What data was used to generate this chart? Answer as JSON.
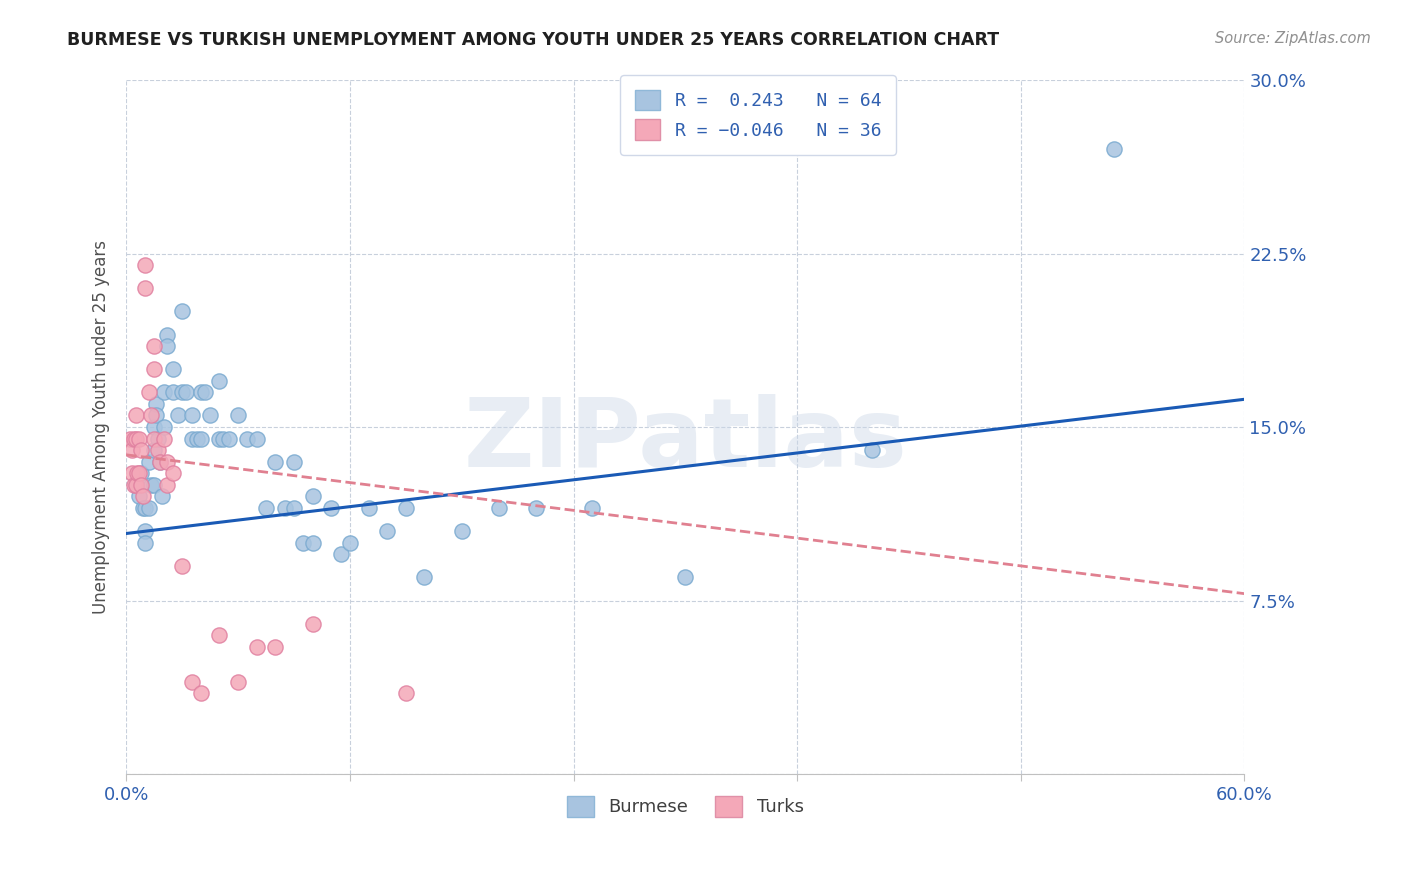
{
  "title": "BURMESE VS TURKISH UNEMPLOYMENT AMONG YOUTH UNDER 25 YEARS CORRELATION CHART",
  "source": "Source: ZipAtlas.com",
  "ylabel": "Unemployment Among Youth under 25 years",
  "xlim": [
    0.0,
    0.6
  ],
  "ylim": [
    0.0,
    0.3
  ],
  "xticks": [
    0.0,
    0.12,
    0.24,
    0.36,
    0.48,
    0.6
  ],
  "xtick_labels": [
    "0.0%",
    "",
    "",
    "",
    "",
    "60.0%"
  ],
  "ytick_labels_right": [
    "",
    "7.5%",
    "15.0%",
    "22.5%",
    "30.0%"
  ],
  "yticks_right": [
    0.0,
    0.075,
    0.15,
    0.225,
    0.3
  ],
  "burmese_R": 0.243,
  "burmese_N": 64,
  "turks_R": -0.046,
  "turks_N": 36,
  "burmese_color": "#a8c4e0",
  "turks_color": "#f4a8b8",
  "trend_burmese_color": "#1a5ab5",
  "trend_turks_color": "#e08090",
  "background_color": "#ffffff",
  "grid_color": "#c8d0dc",
  "watermark": "ZIPatlas",
  "burmese_trend_x0": 0.0,
  "burmese_trend_y0": 0.104,
  "burmese_trend_x1": 0.6,
  "burmese_trend_y1": 0.162,
  "turks_trend_x0": 0.0,
  "turks_trend_y0": 0.138,
  "turks_trend_x1": 0.6,
  "turks_trend_y1": 0.078,
  "burmese_x": [
    0.005,
    0.007,
    0.008,
    0.009,
    0.01,
    0.01,
    0.01,
    0.012,
    0.012,
    0.013,
    0.015,
    0.015,
    0.015,
    0.016,
    0.016,
    0.017,
    0.018,
    0.019,
    0.02,
    0.02,
    0.022,
    0.022,
    0.025,
    0.025,
    0.028,
    0.03,
    0.03,
    0.032,
    0.035,
    0.035,
    0.038,
    0.04,
    0.04,
    0.042,
    0.045,
    0.05,
    0.05,
    0.052,
    0.055,
    0.06,
    0.065,
    0.07,
    0.075,
    0.08,
    0.085,
    0.09,
    0.09,
    0.095,
    0.1,
    0.1,
    0.11,
    0.115,
    0.12,
    0.13,
    0.14,
    0.15,
    0.16,
    0.18,
    0.2,
    0.22,
    0.25,
    0.3,
    0.4,
    0.53
  ],
  "burmese_y": [
    0.125,
    0.12,
    0.13,
    0.115,
    0.115,
    0.105,
    0.1,
    0.135,
    0.115,
    0.125,
    0.15,
    0.14,
    0.125,
    0.16,
    0.155,
    0.145,
    0.135,
    0.12,
    0.165,
    0.15,
    0.19,
    0.185,
    0.175,
    0.165,
    0.155,
    0.2,
    0.165,
    0.165,
    0.155,
    0.145,
    0.145,
    0.165,
    0.145,
    0.165,
    0.155,
    0.17,
    0.145,
    0.145,
    0.145,
    0.155,
    0.145,
    0.145,
    0.115,
    0.135,
    0.115,
    0.135,
    0.115,
    0.1,
    0.12,
    0.1,
    0.115,
    0.095,
    0.1,
    0.115,
    0.105,
    0.115,
    0.085,
    0.105,
    0.115,
    0.115,
    0.115,
    0.085,
    0.14,
    0.27
  ],
  "turks_x": [
    0.002,
    0.003,
    0.003,
    0.004,
    0.004,
    0.005,
    0.005,
    0.005,
    0.006,
    0.007,
    0.007,
    0.008,
    0.008,
    0.009,
    0.01,
    0.01,
    0.012,
    0.013,
    0.015,
    0.015,
    0.015,
    0.017,
    0.018,
    0.02,
    0.022,
    0.022,
    0.025,
    0.03,
    0.035,
    0.04,
    0.05,
    0.06,
    0.07,
    0.08,
    0.1,
    0.15
  ],
  "turks_y": [
    0.145,
    0.14,
    0.13,
    0.145,
    0.125,
    0.155,
    0.145,
    0.125,
    0.13,
    0.145,
    0.13,
    0.14,
    0.125,
    0.12,
    0.22,
    0.21,
    0.165,
    0.155,
    0.185,
    0.175,
    0.145,
    0.14,
    0.135,
    0.145,
    0.135,
    0.125,
    0.13,
    0.09,
    0.04,
    0.035,
    0.06,
    0.04,
    0.055,
    0.055,
    0.065,
    0.035
  ]
}
